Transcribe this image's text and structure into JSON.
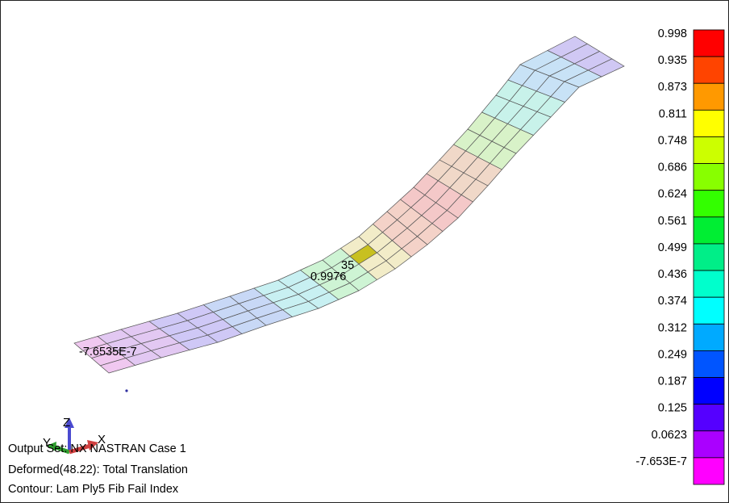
{
  "viewport": {
    "output_set": "Output Set: NX NASTRAN Case 1",
    "deformed": "Deformed(48.22): Total Translation",
    "contour": "Contour: Lam Ply5 Fib Fail Index"
  },
  "model_labels": {
    "max_value": "0.9976",
    "max_element": "35",
    "min_value": "-7.6535E-7"
  },
  "triad": {
    "x_axis": "X",
    "y_axis": "Y",
    "z_axis": "Z",
    "colors": {
      "x": "#d04040",
      "y": "#30a030",
      "z": "#4040d0"
    }
  },
  "legend": {
    "levels": [
      {
        "value": "0.998",
        "color": "#ff0000"
      },
      {
        "value": "0.935",
        "color": "#ff4400"
      },
      {
        "value": "0.873",
        "color": "#ff9900"
      },
      {
        "value": "0.811",
        "color": "#ffff00"
      },
      {
        "value": "0.748",
        "color": "#ccff00"
      },
      {
        "value": "0.686",
        "color": "#88ff00"
      },
      {
        "value": "0.624",
        "color": "#33ff00"
      },
      {
        "value": "0.561",
        "color": "#00ee33"
      },
      {
        "value": "0.499",
        "color": "#00ee88"
      },
      {
        "value": "0.436",
        "color": "#00ffcc"
      },
      {
        "value": "0.374",
        "color": "#00ffff"
      },
      {
        "value": "0.312",
        "color": "#00aaff"
      },
      {
        "value": "0.249",
        "color": "#0055ff"
      },
      {
        "value": "0.187",
        "color": "#0000ff"
      },
      {
        "value": "0.125",
        "color": "#5500ff"
      },
      {
        "value": "0.0623",
        "color": "#aa00ff"
      },
      {
        "value": "-7.653E-7",
        "color": "#ff00ff"
      }
    ]
  }
}
